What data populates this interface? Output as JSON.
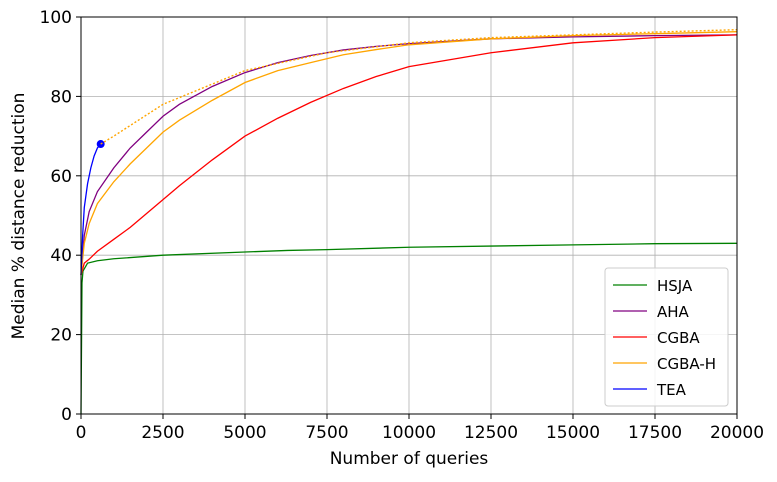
{
  "chart_data": {
    "type": "line",
    "xlabel": "Number of queries",
    "ylabel": "Median % distance reduction",
    "xlim": [
      0,
      20000
    ],
    "ylim": [
      0,
      100
    ],
    "xticks": [
      0,
      2500,
      5000,
      7500,
      10000,
      12500,
      15000,
      17500,
      20000
    ],
    "yticks": [
      0,
      20,
      40,
      60,
      80,
      100
    ],
    "grid": true,
    "legend": "lower right",
    "series": [
      {
        "name": "HSJA",
        "color": "#008000",
        "x": [
          0,
          30,
          60,
          200,
          500,
          1000,
          2500,
          5000,
          6300,
          7500,
          10000,
          12500,
          15000,
          17500,
          20000
        ],
        "values": [
          0,
          33,
          36,
          38,
          38.6,
          39.1,
          40,
          40.8,
          41.2,
          41.4,
          42,
          42.3,
          42.6,
          42.9,
          43
        ]
      },
      {
        "name": "AHA",
        "color": "#800080",
        "x": [
          0,
          100,
          250,
          500,
          1000,
          1500,
          2000,
          2500,
          3000,
          4000,
          5000,
          6000,
          7000,
          8000,
          9000,
          10000,
          12500,
          15000,
          17500,
          20000
        ],
        "values": [
          35,
          45,
          51,
          56,
          62,
          67,
          71,
          75,
          78,
          82.5,
          86,
          88.5,
          90.3,
          91.7,
          92.6,
          93.3,
          94.5,
          95,
          95.3,
          95.5
        ]
      },
      {
        "name": "CGBA",
        "color": "#ff0000",
        "x": [
          0,
          100,
          250,
          500,
          1000,
          1500,
          2000,
          2500,
          3000,
          4000,
          5000,
          6000,
          7000,
          8000,
          9000,
          10000,
          12500,
          15000,
          17500,
          20000
        ],
        "values": [
          35,
          38,
          39,
          41,
          44,
          47,
          50.5,
          54,
          57.5,
          64,
          70,
          74.5,
          78.5,
          82,
          85,
          87.5,
          91,
          93.5,
          94.8,
          95.5
        ]
      },
      {
        "name": "CGBA-H",
        "color": "#ffa500",
        "x": [
          0,
          100,
          250,
          500,
          1000,
          1500,
          2000,
          2500,
          3000,
          4000,
          5000,
          6000,
          7000,
          8000,
          9000,
          10000,
          12500,
          15000,
          17500,
          20000
        ],
        "values": [
          35,
          43,
          48,
          53,
          58.5,
          63,
          67,
          71,
          74,
          79,
          83.5,
          86.5,
          88.5,
          90.5,
          91.8,
          93,
          94.5,
          95.3,
          95.8,
          96.3
        ]
      },
      {
        "name": "TEA",
        "color": "#0000ff",
        "end_marker": true,
        "x": [
          0,
          50,
          100,
          200,
          300,
          400,
          500,
          600
        ],
        "values": [
          35,
          45,
          52,
          58,
          62,
          65,
          67,
          68
        ]
      },
      {
        "color": "#ffa500",
        "dashed": true,
        "x": [
          600,
          1000,
          2500,
          5000,
          7500,
          10000,
          12500,
          15000,
          17500,
          20000
        ],
        "values": [
          68,
          70,
          78,
          86.5,
          91,
          93.5,
          94.8,
          95.5,
          96.2,
          96.8
        ]
      }
    ]
  }
}
